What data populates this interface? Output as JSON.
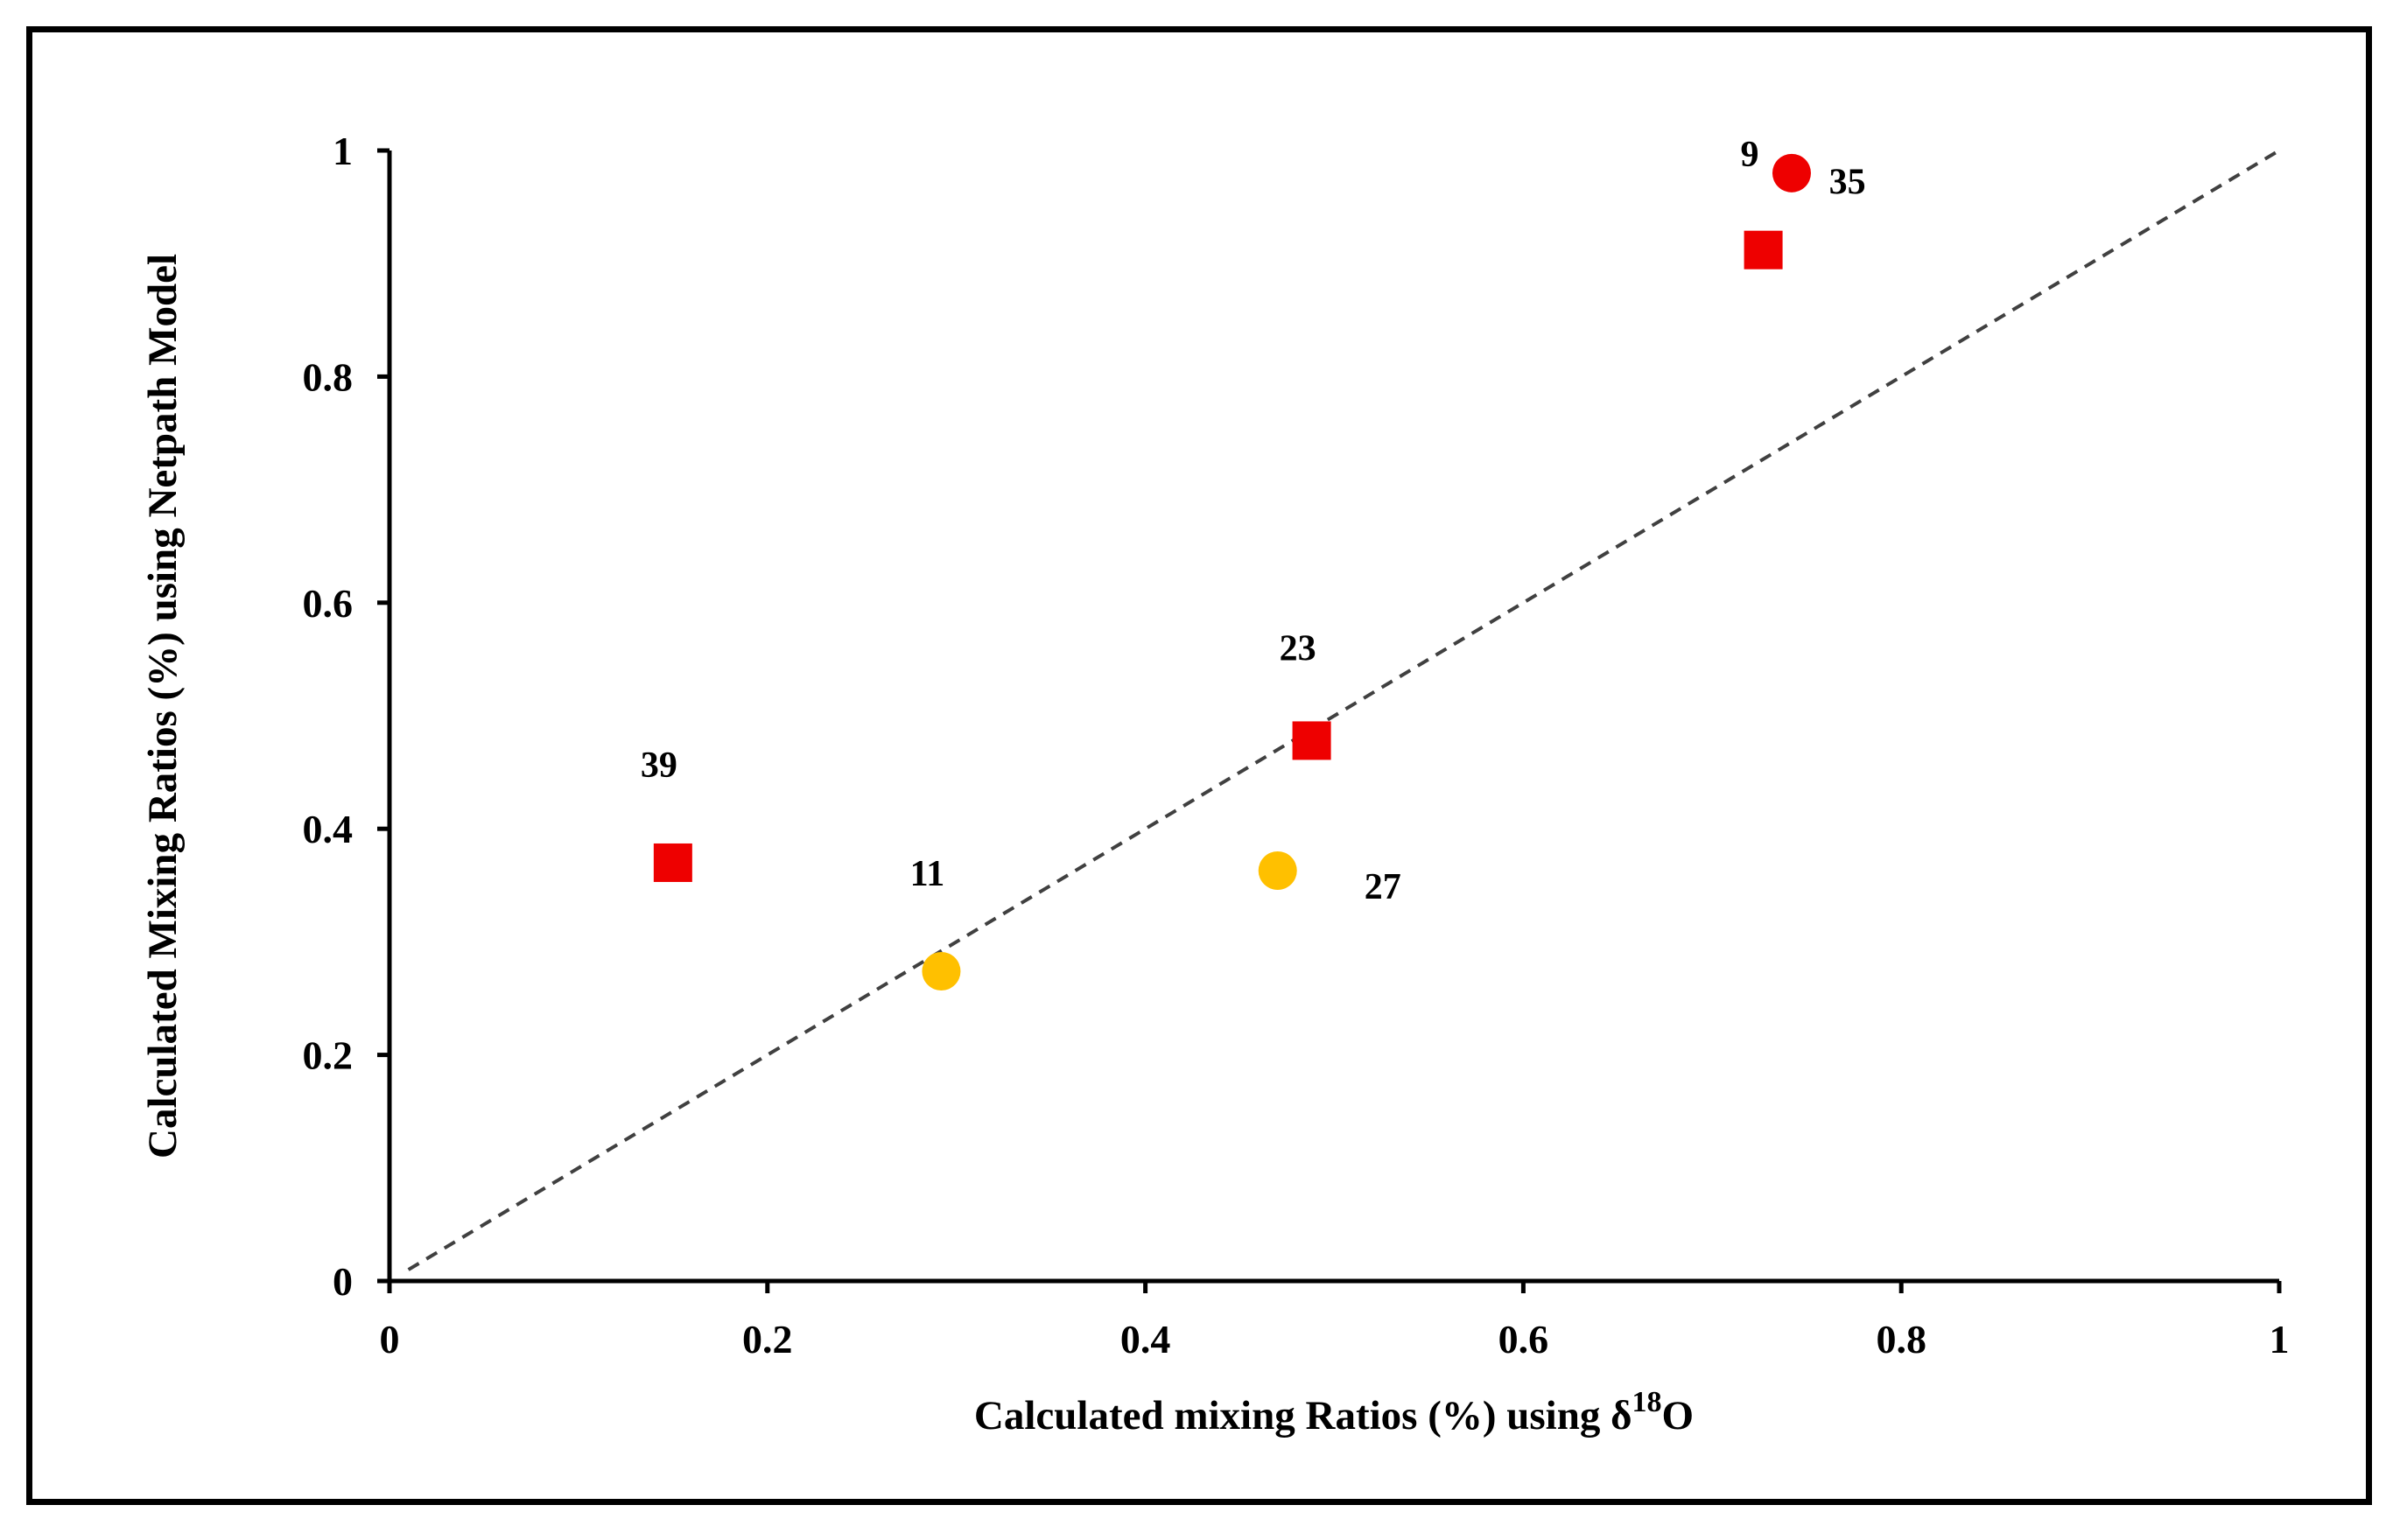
{
  "chart_data": {
    "type": "scatter",
    "title": "",
    "xlabel": "Calculated  mixing Ratios  (%) using",
    "xlabel_symbol": "δ",
    "xlabel_superscript": "18",
    "xlabel_suffix": "O",
    "ylabel": "Calculated  Mixing  Ratios  (%) using Netpath  Model",
    "xlim": [
      0,
      1
    ],
    "ylim": [
      0,
      1
    ],
    "xticks": [
      0,
      0.2,
      0.4,
      0.6,
      0.8,
      1
    ],
    "yticks": [
      0,
      0.2,
      0.4,
      0.6,
      0.8,
      1
    ],
    "xtick_labels": [
      "0",
      "0.2",
      "0.4",
      "0.6",
      "0.8",
      "1"
    ],
    "ytick_labels": [
      "0",
      "0.2",
      "0.4",
      "0.6",
      "0.8",
      "1"
    ],
    "reference_line": {
      "style": "dashed",
      "color": "#404040",
      "from": [
        0.01,
        0.01
      ],
      "to": [
        1,
        1
      ]
    },
    "points": [
      {
        "label": "9",
        "x": 0.742,
        "y": 0.98,
        "marker": "circle",
        "color": "#ee0000",
        "label_pos": "upper-left"
      },
      {
        "label": "35",
        "x": 0.727,
        "y": 0.912,
        "marker": "square",
        "color": "#ee0000",
        "label_pos": "right-above"
      },
      {
        "label": "23",
        "x": 0.488,
        "y": 0.478,
        "marker": "square",
        "color": "#ee0000",
        "label_pos": "above"
      },
      {
        "label": "39",
        "x": 0.15,
        "y": 0.37,
        "marker": "square",
        "color": "#ee0000",
        "label_pos": "above-left"
      },
      {
        "label": "27",
        "x": 0.47,
        "y": 0.363,
        "marker": "circle",
        "color": "#ffc000",
        "label_pos": "right-below"
      },
      {
        "label": "11",
        "x": 0.292,
        "y": 0.274,
        "marker": "circle",
        "color": "#ffc000",
        "label_pos": "above-left"
      }
    ]
  }
}
